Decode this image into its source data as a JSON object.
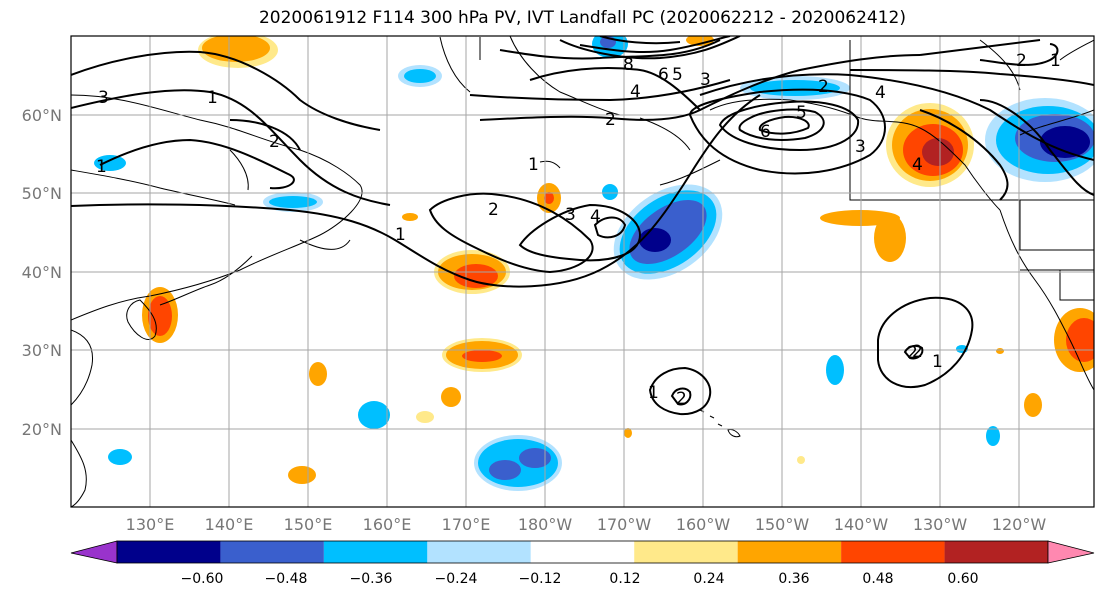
{
  "title": "2020061912 F114 300 hPa PV, IVT Landfall PC (2020062212 - 2020062412)",
  "lat_labels": [
    "60°N",
    "50°N",
    "40°N",
    "30°N",
    "20°N"
  ],
  "lon_labels": [
    "130°E",
    "140°E",
    "150°E",
    "160°E",
    "170°E",
    "180°W",
    "170°W",
    "160°W",
    "150°W",
    "140°W",
    "130°W",
    "120°W"
  ],
  "colorbar": {
    "colors": [
      "#9933cc",
      "#00008b",
      "#3a5fcd",
      "#00bfff",
      "#b2e2ff",
      "#ffffff",
      "#ffe98a",
      "#ffa500",
      "#ff4500",
      "#b22222",
      "#ff88b0"
    ],
    "tick_labels": [
      "−0.60",
      "−0.48",
      "−0.36",
      "−0.24",
      "−0.12",
      "0.12",
      "0.24",
      "0.36",
      "0.48",
      "0.60"
    ]
  },
  "contour_labels": [
    "3",
    "1",
    "1",
    "2",
    "1",
    "2",
    "3",
    "4",
    "1",
    "8",
    "6",
    "5",
    "4",
    "3",
    "2",
    "2",
    "4",
    "3",
    "6",
    "5",
    "2",
    "1",
    "2",
    "2",
    "1",
    "2",
    "1",
    "4"
  ]
}
